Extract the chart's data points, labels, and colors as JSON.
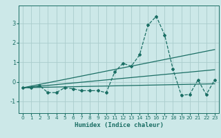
{
  "xlabel": "Humidex (Indice chaleur)",
  "xlim": [
    -0.5,
    23.5
  ],
  "ylim": [
    -1.6,
    3.9
  ],
  "yticks": [
    -1,
    0,
    1,
    2,
    3
  ],
  "xticks": [
    0,
    1,
    2,
    3,
    4,
    5,
    6,
    7,
    8,
    9,
    10,
    11,
    12,
    13,
    14,
    15,
    16,
    17,
    18,
    19,
    20,
    21,
    22,
    23
  ],
  "bg_color": "#cce8e8",
  "grid_color": "#aacccc",
  "line_color": "#1a6e64",
  "main_x": [
    0,
    1,
    2,
    3,
    4,
    5,
    6,
    7,
    8,
    9,
    10,
    11,
    12,
    13,
    14,
    15,
    16,
    17,
    18,
    19,
    20,
    21,
    22,
    23
  ],
  "main_y": [
    -0.3,
    -0.3,
    -0.2,
    -0.55,
    -0.55,
    -0.3,
    -0.35,
    -0.45,
    -0.45,
    -0.45,
    -0.55,
    0.5,
    0.95,
    0.8,
    1.38,
    2.9,
    3.35,
    2.4,
    0.65,
    -0.68,
    -0.65,
    0.1,
    -0.65,
    0.1
  ],
  "trend1_x": [
    0,
    23
  ],
  "trend1_y": [
    -0.3,
    1.65
  ],
  "trend2_x": [
    0,
    23
  ],
  "trend2_y": [
    -0.3,
    0.62
  ],
  "trend3_x": [
    0,
    23
  ],
  "trend3_y": [
    -0.3,
    -0.1
  ]
}
